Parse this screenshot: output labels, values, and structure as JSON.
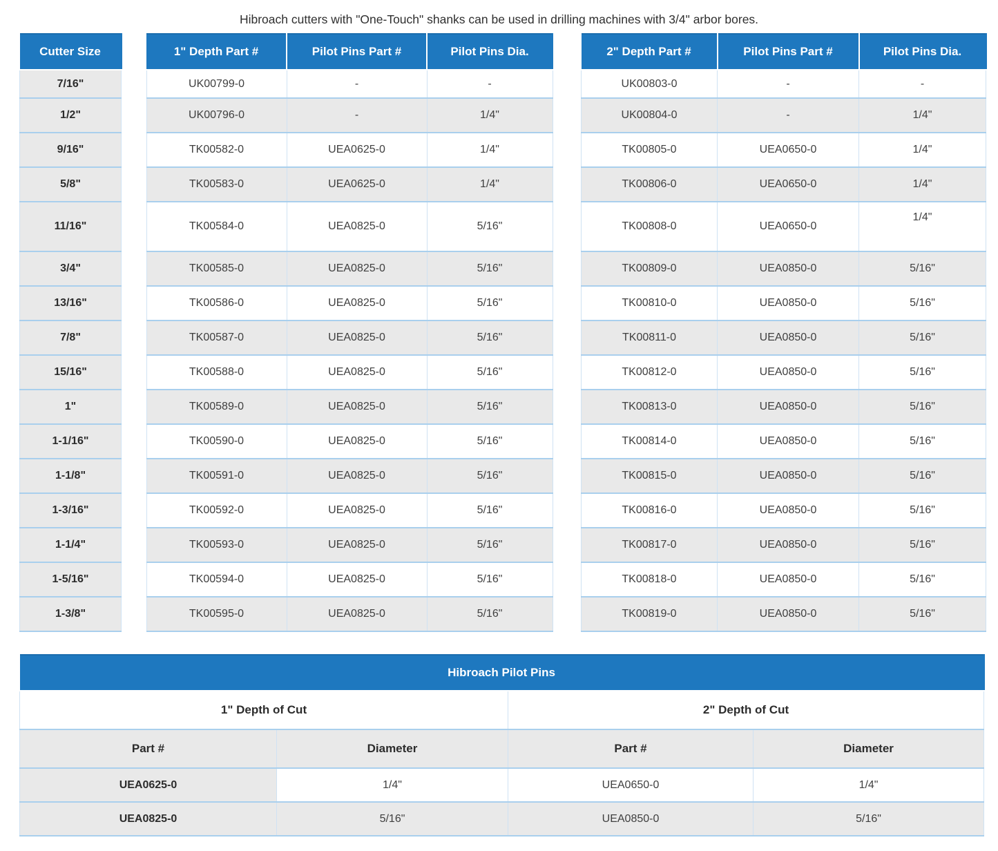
{
  "title": "Hibroach cutters with \"One-Touch\" shanks can be used in drilling machines with 3/4\" arbor bores.",
  "colors": {
    "header_blue": "#1e78bf",
    "stripe_gray": "#e9e9e9",
    "row_border_blue": "#a9cfed"
  },
  "cutter_table": {
    "header": "Cutter Size",
    "sizes": [
      "7/16\"",
      "1/2\"",
      "9/16\"",
      "5/8\"",
      "11/16\"",
      "3/4\"",
      "13/16\"",
      "7/8\"",
      "15/16\"",
      "1\"",
      "1-1/16\"",
      "1-1/8\"",
      "1-3/16\"",
      "1-1/4\"",
      "1-5/16\"",
      "1-3/8\""
    ]
  },
  "depth1_table": {
    "headers": [
      "1\" Depth Part #",
      "Pilot Pins Part #",
      "Pilot Pins Dia."
    ],
    "rows": [
      [
        "UK00799-0",
        "-",
        "-"
      ],
      [
        "UK00796-0",
        "-",
        "1/4\""
      ],
      [
        "TK00582-0",
        "UEA0625-0",
        "1/4\""
      ],
      [
        "TK00583-0",
        "UEA0625-0",
        "1/4\""
      ],
      [
        "TK00584-0",
        "UEA0825-0",
        "5/16\""
      ],
      [
        "TK00585-0",
        "UEA0825-0",
        "5/16\""
      ],
      [
        "TK00586-0",
        "UEA0825-0",
        "5/16\""
      ],
      [
        "TK00587-0",
        "UEA0825-0",
        "5/16\""
      ],
      [
        "TK00588-0",
        "UEA0825-0",
        "5/16\""
      ],
      [
        "TK00589-0",
        "UEA0825-0",
        "5/16\""
      ],
      [
        "TK00590-0",
        "UEA0825-0",
        "5/16\""
      ],
      [
        "TK00591-0",
        "UEA0825-0",
        "5/16\""
      ],
      [
        "TK00592-0",
        "UEA0825-0",
        "5/16\""
      ],
      [
        "TK00593-0",
        "UEA0825-0",
        "5/16\""
      ],
      [
        "TK00594-0",
        "UEA0825-0",
        "5/16\""
      ],
      [
        "TK00595-0",
        "UEA0825-0",
        "5/16\""
      ]
    ]
  },
  "depth2_table": {
    "headers": [
      "2\" Depth Part #",
      "Pilot Pins Part #",
      "Pilot Pins Dia."
    ],
    "rows": [
      [
        "UK00803-0",
        "-",
        "-"
      ],
      [
        "UK00804-0",
        "-",
        "1/4\""
      ],
      [
        "TK00805-0",
        "UEA0650-0",
        "1/4\""
      ],
      [
        "TK00806-0",
        "UEA0650-0",
        "1/4\""
      ],
      [
        "TK00808-0",
        "UEA0650-0",
        "1/4\""
      ],
      [
        "TK00809-0",
        "UEA0850-0",
        "5/16\""
      ],
      [
        "TK00810-0",
        "UEA0850-0",
        "5/16\""
      ],
      [
        "TK00811-0",
        "UEA0850-0",
        "5/16\""
      ],
      [
        "TK00812-0",
        "UEA0850-0",
        "5/16\""
      ],
      [
        "TK00813-0",
        "UEA0850-0",
        "5/16\""
      ],
      [
        "TK00814-0",
        "UEA0850-0",
        "5/16\""
      ],
      [
        "TK00815-0",
        "UEA0850-0",
        "5/16\""
      ],
      [
        "TK00816-0",
        "UEA0850-0",
        "5/16\""
      ],
      [
        "TK00817-0",
        "UEA0850-0",
        "5/16\""
      ],
      [
        "TK00818-0",
        "UEA0850-0",
        "5/16\""
      ],
      [
        "TK00819-0",
        "UEA0850-0",
        "5/16\""
      ]
    ]
  },
  "pilot_pins_table": {
    "title": "Hibroach Pilot Pins",
    "section_labels": [
      "1\" Depth of Cut",
      "2\" Depth of Cut"
    ],
    "col_headers": [
      "Part #",
      "Diameter",
      "Part #",
      "Diameter"
    ],
    "rows": [
      [
        "UEA0625-0",
        "1/4\"",
        "UEA0650-0",
        "1/4\""
      ],
      [
        "UEA0825-0",
        "5/16\"",
        "UEA0850-0",
        "5/16\""
      ]
    ]
  }
}
